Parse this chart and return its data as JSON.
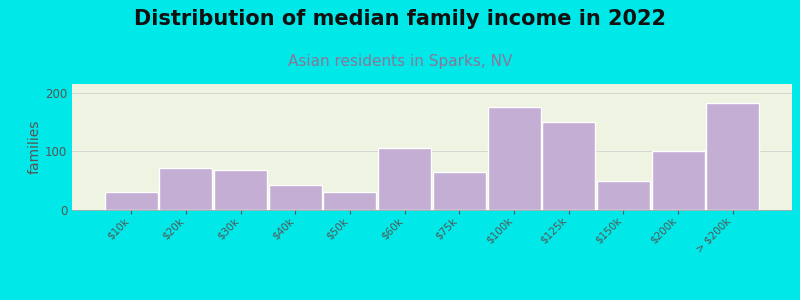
{
  "title": "Distribution of median family income in 2022",
  "subtitle": "Asian residents in Sparks, NV",
  "xlabel": "",
  "ylabel": "families",
  "categories": [
    "$10k",
    "$20k",
    "$30k",
    "$40k",
    "$50k",
    "$60k",
    "$75k",
    "$100k",
    "$125k",
    "$150k",
    "$200k",
    "> $200k"
  ],
  "values": [
    30,
    72,
    68,
    42,
    30,
    105,
    65,
    175,
    150,
    50,
    100,
    182
  ],
  "bar_color": "#c4aed4",
  "bar_edge_color": "#ffffff",
  "background_color": "#00e8e8",
  "plot_bg_color": "#eef3e2",
  "title_fontsize": 15,
  "title_color": "#111111",
  "subtitle_fontsize": 11,
  "subtitle_color": "#887799",
  "ylabel_fontsize": 10,
  "tick_label_color": "#555555",
  "ylim": [
    0,
    215
  ],
  "yticks": [
    0,
    100,
    200
  ],
  "grid_color": "#cccccc"
}
